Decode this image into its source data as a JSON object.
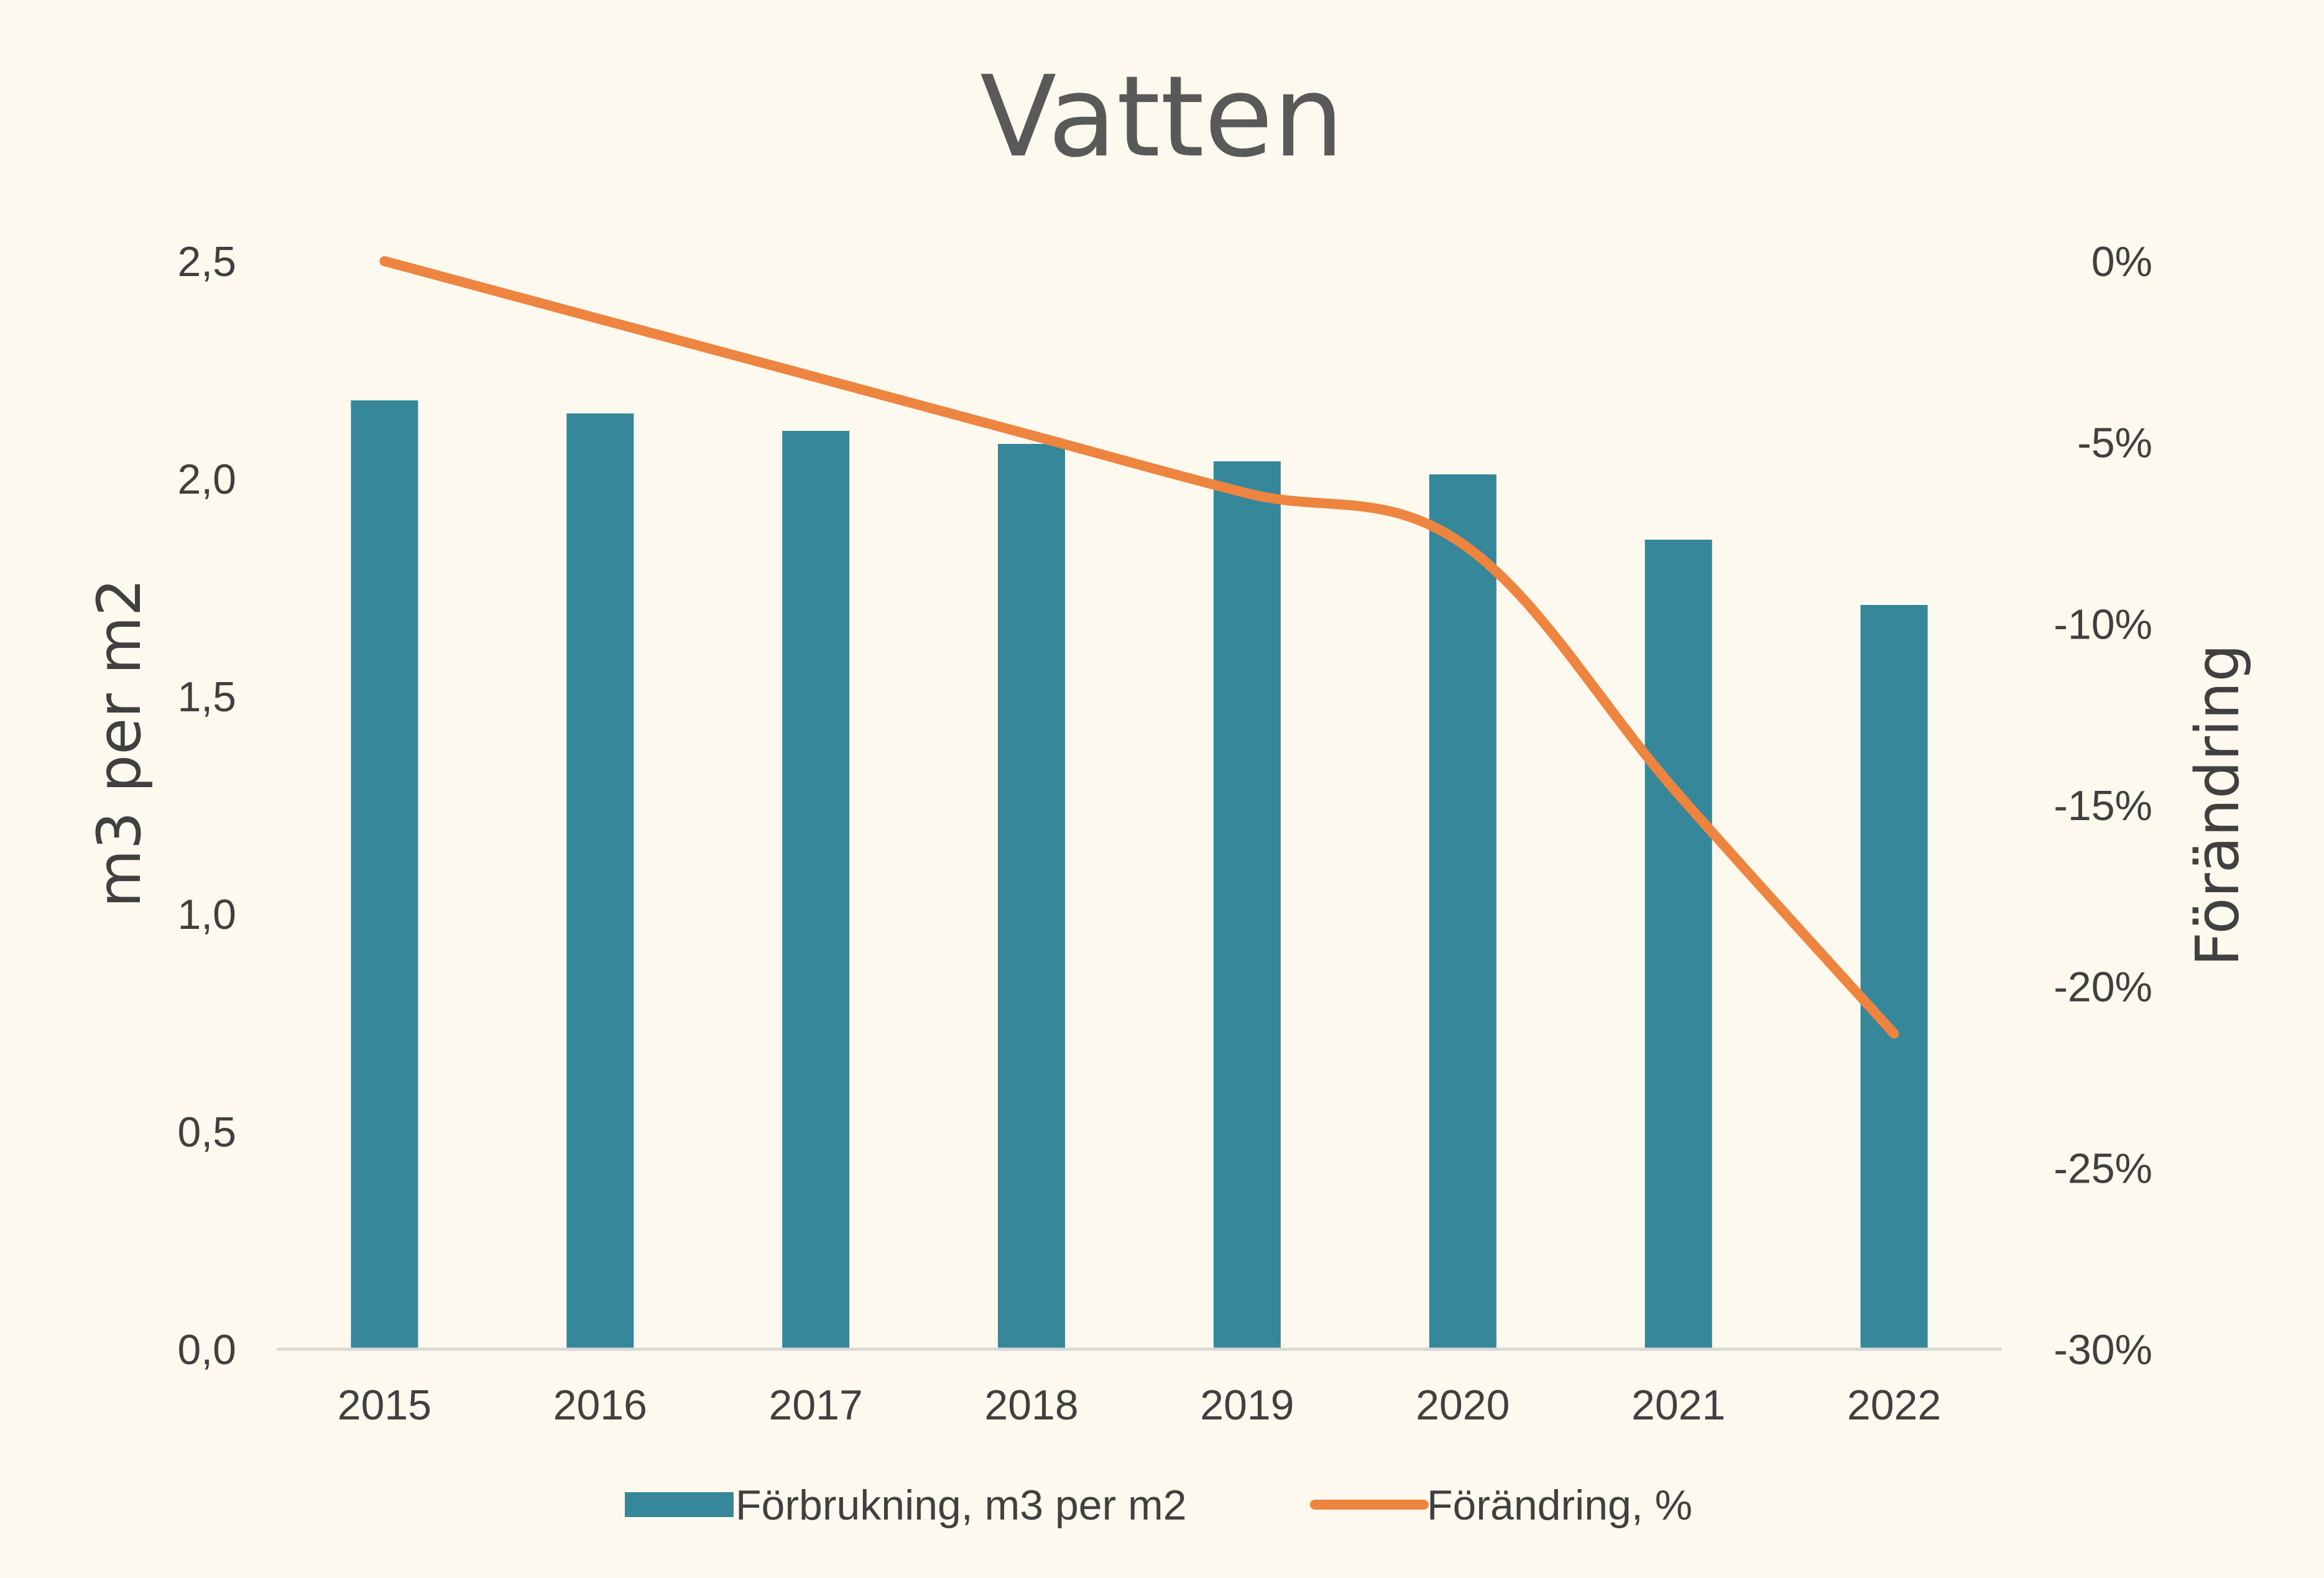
{
  "chart_data": {
    "type": "bar",
    "title": "Vatten",
    "categories": [
      "2015",
      "2016",
      "2017",
      "2018",
      "2019",
      "2020",
      "2021",
      "2022"
    ],
    "ylabel": "m3 per m2",
    "y2label": "Förändring",
    "ylim": [
      0,
      2.5
    ],
    "y2lim": [
      -30,
      0
    ],
    "yticks": [
      "0,0",
      "0,5",
      "1,0",
      "1,5",
      "2,0",
      "2,5"
    ],
    "y2ticks": [
      "-30%",
      "-25%",
      "-20%",
      "-15%",
      "-10%",
      "-5%",
      "0%"
    ],
    "grid": false,
    "legend_position": "bottom",
    "series": [
      {
        "name": "Förbrukning, m3 per m2",
        "type": "bar",
        "axis": "left",
        "color": "#368799",
        "values": [
          2.18,
          2.15,
          2.11,
          2.08,
          2.04,
          2.01,
          1.86,
          1.71
        ]
      },
      {
        "name": "Förändring, %",
        "type": "line",
        "axis": "right",
        "color": "#ED843F",
        "values": [
          0,
          -1.6,
          -3.2,
          -4.8,
          -6.4,
          -7.8,
          -14.7,
          -21.3
        ]
      }
    ]
  }
}
